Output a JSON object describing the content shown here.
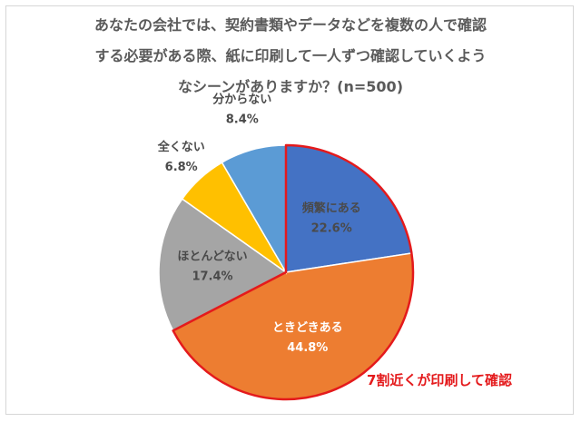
{
  "chart_data": {
    "type": "pie",
    "title": "あなたの会社では、契約書類やデータなどを複数の人で確認する必要がある際、紙に印刷して一人ずつ確認していくようなシーンがありますか？(n=500)",
    "title_lines": [
      "あなたの会社では、契約書類やデータなどを複数の人で確認",
      "する必要がある際、紙に印刷して一人ずつ確認していくよう",
      "なシーンがありますか？(n=500)"
    ],
    "slices": [
      {
        "label": "頻繁にある",
        "value": 22.6,
        "value_label": "22.6%",
        "color": "#4472c4"
      },
      {
        "label": "ときどきある",
        "value": 44.8,
        "value_label": "44.8%",
        "color": "#ed7d31"
      },
      {
        "label": "ほとんどない",
        "value": 17.4,
        "value_label": "17.4%",
        "color": "#a5a5a5"
      },
      {
        "label": "全くない",
        "value": 6.8,
        "value_label": "6.8%",
        "color": "#ffc000"
      },
      {
        "label": "分からない",
        "value": 8.4,
        "value_label": "8.4%",
        "color": "#5b9bd5"
      }
    ],
    "start_angle_deg": 0,
    "direction": "clockwise",
    "highlight": {
      "slices": [
        "頻繁にある",
        "ときどきある"
      ],
      "outline_color": "#e41a1c"
    },
    "annotation": "7割近くが印刷して確認",
    "legend": "none"
  }
}
